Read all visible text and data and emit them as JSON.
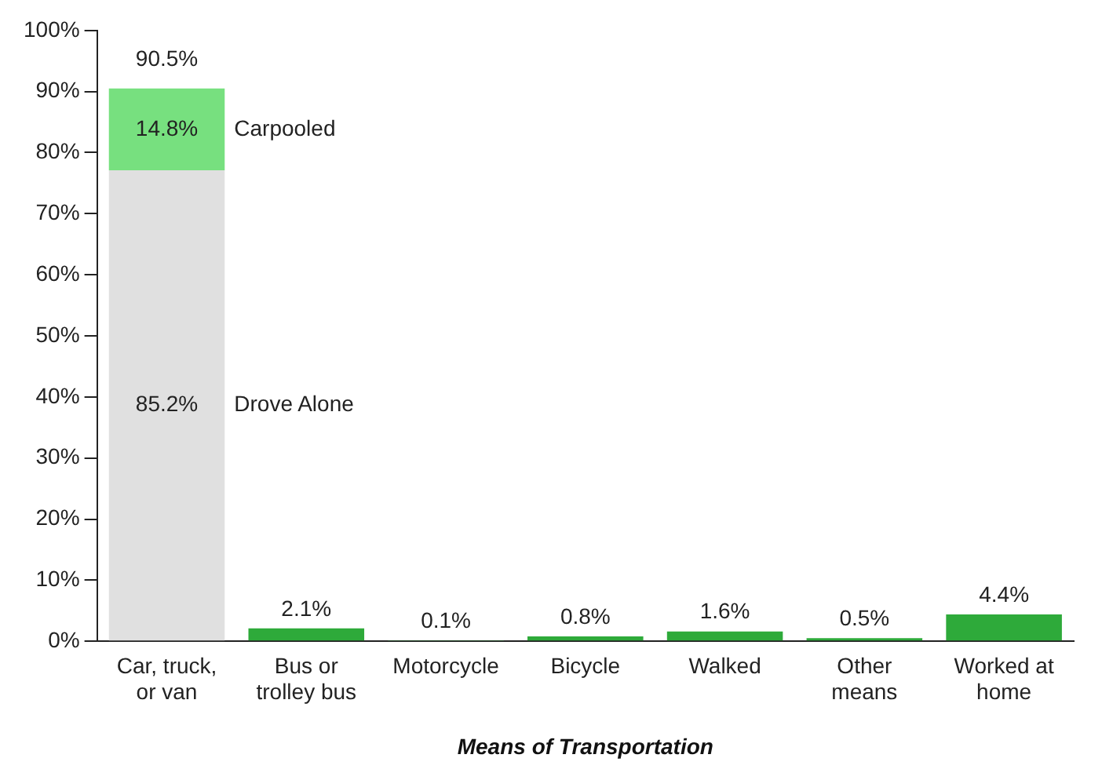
{
  "chart_data": {
    "type": "bar",
    "stacked": true,
    "xlabel": "Means of Transportation",
    "categories": [
      "Car, truck,\nor van",
      "Bus or\ntrolley bus",
      "Motorcycle",
      "Bicycle",
      "Walked",
      "Other\nmeans",
      "Worked at\nhome"
    ],
    "series": [
      {
        "name": "Drove Alone",
        "color": "#e0e0e0",
        "values": [
          77.1,
          null,
          null,
          null,
          null,
          null,
          null
        ]
      },
      {
        "name": "Carpooled",
        "color": "#77e07f",
        "values": [
          13.4,
          null,
          null,
          null,
          null,
          null,
          null
        ]
      },
      {
        "color": "#2eaa3a",
        "values": [
          null,
          2.1,
          0.1,
          0.8,
          1.6,
          0.5,
          4.4
        ],
        "value_labels": [
          null,
          "2.1%",
          "0.1%",
          "0.8%",
          "1.6%",
          "0.5%",
          "4.4%"
        ]
      }
    ],
    "totals": [
      "90.5%",
      null,
      null,
      null,
      null,
      null,
      null
    ],
    "annotations": [
      "85.2%",
      "14.8%"
    ],
    "ylim": [
      0,
      100
    ],
    "yticks": [
      {
        "value": 0,
        "label": "0%"
      },
      {
        "value": 10,
        "label": "10%"
      },
      {
        "value": 20,
        "label": "20%"
      },
      {
        "value": 30,
        "label": "30%"
      },
      {
        "value": 40,
        "label": "40%"
      },
      {
        "value": 50,
        "label": "50%"
      },
      {
        "value": 60,
        "label": "60%"
      },
      {
        "value": 70,
        "label": "70%"
      },
      {
        "value": 80,
        "label": "80%"
      },
      {
        "value": 90,
        "label": "90%"
      },
      {
        "value": 100,
        "label": "100%"
      }
    ],
    "grid": false,
    "legend": false
  }
}
